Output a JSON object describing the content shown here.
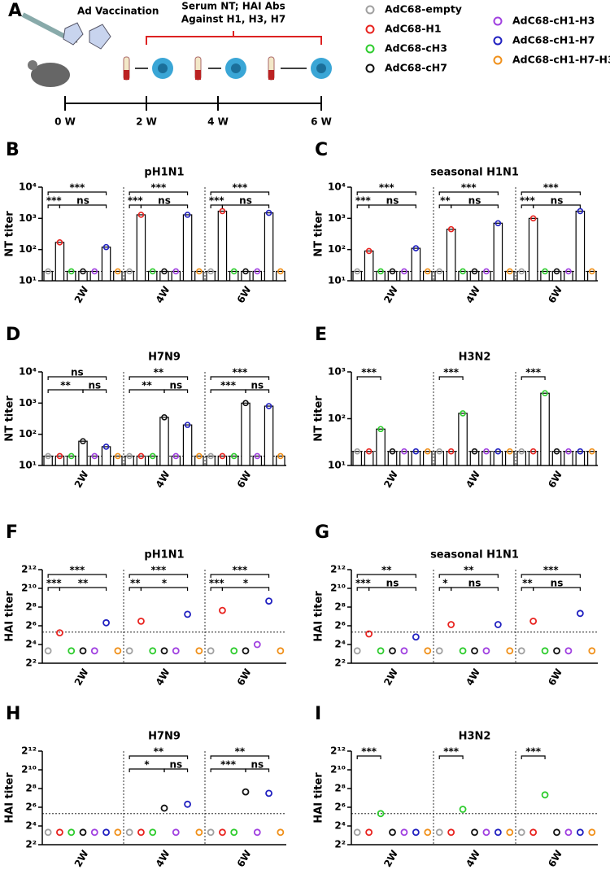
{
  "panel_a": {
    "label": "A",
    "vaccination": "Ad Vaccination",
    "serum_line1": "Serum NT; HAI Abs",
    "serum_line2": "Against H1, H3, H7",
    "timepoints": [
      "0 W",
      "2 W",
      "4 W",
      "6 W"
    ]
  },
  "legend": [
    {
      "name": "AdC68-empty",
      "color": "#a0a0a0"
    },
    {
      "name": "AdC68-H1",
      "color": "#e8231f"
    },
    {
      "name": "AdC68-cH3",
      "color": "#2ecc2e"
    },
    {
      "name": "AdC68-cH7",
      "color": "#111111"
    },
    {
      "name": "AdC68-cH1-H3",
      "color": "#a040e0"
    },
    {
      "name": "AdC68-cH1-H7",
      "color": "#2020c0"
    },
    {
      "name": "AdC68-cH1-H7-H3",
      "color": "#f0901a"
    }
  ],
  "chart_data": [
    {
      "type": "bar",
      "panel": "B",
      "title": "pH1N1",
      "ylabel": "NT titer",
      "log": true,
      "threshold": 20,
      "categories": [
        "2W",
        "4W",
        "6W"
      ],
      "ylim": [
        10,
        10000
      ],
      "yticks": [
        {
          "value": 10,
          "label": "10¹"
        },
        {
          "value": 100,
          "label": "10²"
        },
        {
          "value": 1000,
          "label": "10³"
        },
        {
          "value": 10000,
          "label": "10⁴"
        }
      ],
      "series": [
        {
          "values": [
            20,
            20,
            20
          ]
        },
        {
          "values": [
            170,
            1300,
            1700
          ]
        },
        {
          "values": [
            20,
            20,
            20
          ]
        },
        {
          "values": [
            20,
            20,
            20
          ]
        },
        {
          "values": [
            20,
            20,
            20
          ]
        },
        {
          "values": [
            120,
            1300,
            1500
          ]
        },
        {
          "values": [
            20,
            20,
            20
          ]
        }
      ],
      "comparisons": [
        {
          "group": 0,
          "a": 0,
          "b": 5,
          "label": "***"
        },
        {
          "group": 0,
          "a": 0,
          "b": 1,
          "label": "***"
        },
        {
          "group": 0,
          "a": 1,
          "b": 5,
          "label": "ns"
        },
        {
          "group": 1,
          "a": 0,
          "b": 5,
          "label": "***"
        },
        {
          "group": 1,
          "a": 0,
          "b": 1,
          "label": "***"
        },
        {
          "group": 1,
          "a": 1,
          "b": 5,
          "label": "ns"
        },
        {
          "group": 2,
          "a": 0,
          "b": 5,
          "label": "***"
        },
        {
          "group": 2,
          "a": 0,
          "b": 1,
          "label": "***"
        },
        {
          "group": 2,
          "a": 1,
          "b": 5,
          "label": "ns"
        }
      ]
    },
    {
      "type": "bar",
      "panel": "C",
      "title": "seasonal H1N1",
      "ylabel": "NT titer",
      "log": true,
      "threshold": 20,
      "categories": [
        "2W",
        "4W",
        "6W"
      ],
      "ylim": [
        10,
        10000
      ],
      "yticks": [
        {
          "value": 10,
          "label": "10¹"
        },
        {
          "value": 100,
          "label": "10²"
        },
        {
          "value": 1000,
          "label": "10³"
        },
        {
          "value": 10000,
          "label": "10⁴"
        }
      ],
      "series": [
        {
          "values": [
            20,
            20,
            20
          ]
        },
        {
          "values": [
            90,
            450,
            1000
          ]
        },
        {
          "values": [
            20,
            20,
            20
          ]
        },
        {
          "values": [
            20,
            20,
            20
          ]
        },
        {
          "values": [
            20,
            20,
            20
          ]
        },
        {
          "values": [
            110,
            700,
            1700
          ]
        },
        {
          "values": [
            20,
            20,
            20
          ]
        }
      ],
      "comparisons": [
        {
          "group": 0,
          "a": 0,
          "b": 5,
          "label": "***"
        },
        {
          "group": 0,
          "a": 0,
          "b": 1,
          "label": "***"
        },
        {
          "group": 0,
          "a": 1,
          "b": 5,
          "label": "ns"
        },
        {
          "group": 1,
          "a": 0,
          "b": 5,
          "label": "***"
        },
        {
          "group": 1,
          "a": 0,
          "b": 1,
          "label": "**"
        },
        {
          "group": 1,
          "a": 1,
          "b": 5,
          "label": "ns"
        },
        {
          "group": 2,
          "a": 0,
          "b": 5,
          "label": "***"
        },
        {
          "group": 2,
          "a": 0,
          "b": 1,
          "label": "***"
        },
        {
          "group": 2,
          "a": 1,
          "b": 5,
          "label": "ns"
        }
      ]
    },
    {
      "type": "bar",
      "panel": "D",
      "title": "H7N9",
      "ylabel": "NT titer",
      "log": true,
      "threshold": 20,
      "categories": [
        "2W",
        "4W",
        "6W"
      ],
      "ylim": [
        10,
        10000
      ],
      "yticks": [
        {
          "value": 10,
          "label": "10¹"
        },
        {
          "value": 100,
          "label": "10²"
        },
        {
          "value": 1000,
          "label": "10³"
        },
        {
          "value": 10000,
          "label": "10⁴"
        }
      ],
      "series": [
        {
          "values": [
            20,
            20,
            20
          ]
        },
        {
          "values": [
            20,
            20,
            20
          ]
        },
        {
          "values": [
            20,
            20,
            20
          ]
        },
        {
          "values": [
            60,
            350,
            1000
          ]
        },
        {
          "values": [
            20,
            20,
            20
          ]
        },
        {
          "values": [
            40,
            200,
            800
          ]
        },
        {
          "values": [
            20,
            20,
            20
          ]
        }
      ],
      "comparisons": [
        {
          "group": 0,
          "a": 0,
          "b": 5,
          "label": "ns"
        },
        {
          "group": 0,
          "a": 0,
          "b": 3,
          "label": "**"
        },
        {
          "group": 0,
          "a": 3,
          "b": 5,
          "label": "ns"
        },
        {
          "group": 1,
          "a": 0,
          "b": 5,
          "label": "**"
        },
        {
          "group": 1,
          "a": 0,
          "b": 3,
          "label": "**"
        },
        {
          "group": 1,
          "a": 3,
          "b": 5,
          "label": "ns"
        },
        {
          "group": 2,
          "a": 0,
          "b": 5,
          "label": "***"
        },
        {
          "group": 2,
          "a": 0,
          "b": 3,
          "label": "***"
        },
        {
          "group": 2,
          "a": 3,
          "b": 5,
          "label": "ns"
        }
      ]
    },
    {
      "type": "bar",
      "panel": "E",
      "title": "H3N2",
      "ylabel": "NT titer",
      "log": true,
      "threshold": 20,
      "categories": [
        "2W",
        "4W",
        "6W"
      ],
      "ylim": [
        10,
        1000
      ],
      "yticks": [
        {
          "value": 10,
          "label": "10¹"
        },
        {
          "value": 100,
          "label": "10²"
        },
        {
          "value": 1000,
          "label": "10³"
        }
      ],
      "series": [
        {
          "values": [
            20,
            20,
            20
          ]
        },
        {
          "values": [
            20,
            20,
            20
          ]
        },
        {
          "values": [
            60,
            130,
            350
          ]
        },
        {
          "values": [
            20,
            20,
            20
          ]
        },
        {
          "values": [
            20,
            20,
            20
          ]
        },
        {
          "values": [
            20,
            20,
            20
          ]
        },
        {
          "values": [
            20,
            20,
            20
          ]
        }
      ],
      "comparisons": [
        {
          "group": 0,
          "a": 0,
          "b": 2,
          "label": "***"
        },
        {
          "group": 1,
          "a": 0,
          "b": 2,
          "label": "***"
        },
        {
          "group": 2,
          "a": 0,
          "b": 2,
          "label": "***"
        }
      ]
    },
    {
      "type": "scatter",
      "panel": "F",
      "title": "pH1N1",
      "ylabel": "HAI titer",
      "log": true,
      "threshold": 40,
      "categories": [
        "2W",
        "4W",
        "6W"
      ],
      "ylim": [
        4,
        4096
      ],
      "yticks": [
        {
          "value": 4,
          "label": "2²"
        },
        {
          "value": 16,
          "label": "2⁴"
        },
        {
          "value": 64,
          "label": "2⁶"
        },
        {
          "value": 256,
          "label": "2⁸"
        },
        {
          "value": 1024,
          "label": "2¹⁰"
        },
        {
          "value": 4096,
          "label": "2¹²"
        }
      ],
      "series": [
        {
          "values": [
            10,
            10,
            10
          ]
        },
        {
          "values": [
            38,
            90,
            200
          ]
        },
        {
          "values": [
            10,
            10,
            10
          ]
        },
        {
          "values": [
            10,
            10,
            10
          ]
        },
        {
          "values": [
            10,
            10,
            16
          ]
        },
        {
          "values": [
            80,
            150,
            400
          ]
        },
        {
          "values": [
            10,
            10,
            10
          ]
        }
      ],
      "comparisons": [
        {
          "group": 0,
          "a": 0,
          "b": 5,
          "label": "***"
        },
        {
          "group": 0,
          "a": 0,
          "b": 1,
          "label": "***"
        },
        {
          "group": 0,
          "a": 1,
          "b": 5,
          "label": "**"
        },
        {
          "group": 1,
          "a": 0,
          "b": 5,
          "label": "***"
        },
        {
          "group": 1,
          "a": 0,
          "b": 1,
          "label": "**"
        },
        {
          "group": 1,
          "a": 1,
          "b": 5,
          "label": "*"
        },
        {
          "group": 2,
          "a": 0,
          "b": 5,
          "label": "***"
        },
        {
          "group": 2,
          "a": 0,
          "b": 1,
          "label": "***"
        },
        {
          "group": 2,
          "a": 1,
          "b": 5,
          "label": "*"
        }
      ]
    },
    {
      "type": "scatter",
      "panel": "G",
      "title": "seasonal H1N1",
      "ylabel": "HAI titer",
      "log": true,
      "threshold": 40,
      "categories": [
        "2W",
        "4W",
        "6W"
      ],
      "ylim": [
        4,
        4096
      ],
      "yticks": [
        {
          "value": 4,
          "label": "2²"
        },
        {
          "value": 16,
          "label": "2⁴"
        },
        {
          "value": 64,
          "label": "2⁶"
        },
        {
          "value": 256,
          "label": "2⁸"
        },
        {
          "value": 1024,
          "label": "2¹⁰"
        },
        {
          "value": 4096,
          "label": "2¹²"
        }
      ],
      "series": [
        {
          "values": [
            10,
            10,
            10
          ]
        },
        {
          "values": [
            35,
            70,
            90
          ]
        },
        {
          "values": [
            10,
            10,
            10
          ]
        },
        {
          "values": [
            10,
            10,
            10
          ]
        },
        {
          "values": [
            10,
            10,
            10
          ]
        },
        {
          "values": [
            28,
            70,
            160
          ]
        },
        {
          "values": [
            10,
            10,
            10
          ]
        }
      ],
      "comparisons": [
        {
          "group": 0,
          "a": 0,
          "b": 5,
          "label": "**"
        },
        {
          "group": 0,
          "a": 0,
          "b": 1,
          "label": "***"
        },
        {
          "group": 0,
          "a": 1,
          "b": 5,
          "label": "ns"
        },
        {
          "group": 1,
          "a": 0,
          "b": 5,
          "label": "**"
        },
        {
          "group": 1,
          "a": 0,
          "b": 1,
          "label": "*"
        },
        {
          "group": 1,
          "a": 1,
          "b": 5,
          "label": "ns"
        },
        {
          "group": 2,
          "a": 0,
          "b": 5,
          "label": "***"
        },
        {
          "group": 2,
          "a": 0,
          "b": 1,
          "label": "**"
        },
        {
          "group": 2,
          "a": 1,
          "b": 5,
          "label": "ns"
        }
      ]
    },
    {
      "type": "scatter",
      "panel": "H",
      "title": "H7N9",
      "ylabel": "HAI titer",
      "log": true,
      "threshold": 40,
      "categories": [
        "2W",
        "4W",
        "6W"
      ],
      "ylim": [
        4,
        4096
      ],
      "yticks": [
        {
          "value": 4,
          "label": "2²"
        },
        {
          "value": 16,
          "label": "2⁴"
        },
        {
          "value": 64,
          "label": "2⁶"
        },
        {
          "value": 256,
          "label": "2⁸"
        },
        {
          "value": 1024,
          "label": "2¹⁰"
        },
        {
          "value": 4096,
          "label": "2¹²"
        }
      ],
      "series": [
        {
          "values": [
            10,
            10,
            10
          ]
        },
        {
          "values": [
            10,
            10,
            10
          ]
        },
        {
          "values": [
            10,
            10,
            10
          ]
        },
        {
          "values": [
            10,
            60,
            200
          ]
        },
        {
          "values": [
            10,
            10,
            10
          ]
        },
        {
          "values": [
            10,
            80,
            180
          ]
        },
        {
          "values": [
            10,
            10,
            10
          ]
        }
      ],
      "comparisons": [
        {
          "group": 1,
          "a": 0,
          "b": 5,
          "label": "**"
        },
        {
          "group": 1,
          "a": 0,
          "b": 3,
          "label": "*"
        },
        {
          "group": 1,
          "a": 3,
          "b": 5,
          "label": "ns"
        },
        {
          "group": 2,
          "a": 0,
          "b": 5,
          "label": "**"
        },
        {
          "group": 2,
          "a": 0,
          "b": 3,
          "label": "***"
        },
        {
          "group": 2,
          "a": 3,
          "b": 5,
          "label": "ns"
        }
      ]
    },
    {
      "type": "scatter",
      "panel": "I",
      "title": "H3N2",
      "ylabel": "HAI titer",
      "log": true,
      "threshold": 40,
      "categories": [
        "2W",
        "4W",
        "6W"
      ],
      "ylim": [
        4,
        4096
      ],
      "yticks": [
        {
          "value": 4,
          "label": "2²"
        },
        {
          "value": 16,
          "label": "2⁴"
        },
        {
          "value": 64,
          "label": "2⁶"
        },
        {
          "value": 256,
          "label": "2⁸"
        },
        {
          "value": 1024,
          "label": "2¹⁰"
        },
        {
          "value": 4096,
          "label": "2¹²"
        }
      ],
      "series": [
        {
          "values": [
            10,
            10,
            10
          ]
        },
        {
          "values": [
            10,
            10,
            10
          ]
        },
        {
          "values": [
            40,
            55,
            160
          ]
        },
        {
          "values": [
            10,
            10,
            10
          ]
        },
        {
          "values": [
            10,
            10,
            10
          ]
        },
        {
          "values": [
            10,
            10,
            10
          ]
        },
        {
          "values": [
            10,
            10,
            10
          ]
        }
      ],
      "comparisons": [
        {
          "group": 0,
          "a": 0,
          "b": 2,
          "label": "***"
        },
        {
          "group": 1,
          "a": 0,
          "b": 2,
          "label": "***"
        },
        {
          "group": 2,
          "a": 0,
          "b": 2,
          "label": "***"
        }
      ]
    }
  ]
}
